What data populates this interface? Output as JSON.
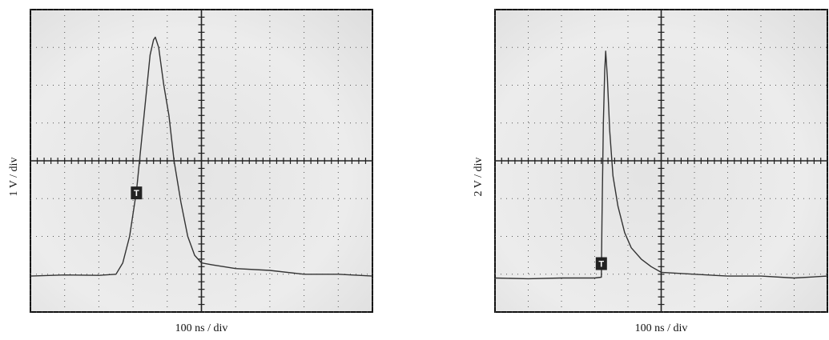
{
  "chart_data": [
    {
      "type": "line",
      "xlabel": "100 ns / div",
      "ylabel": "1 V / div",
      "xlim": [
        0,
        10
      ],
      "ylim": [
        0,
        8
      ],
      "xticks": [
        0,
        1,
        2,
        3,
        4,
        5,
        6,
        7,
        8,
        9,
        10
      ],
      "yticks": [
        0,
        1,
        2,
        3,
        4,
        5,
        6,
        7,
        8
      ],
      "grid": true,
      "x": [
        0,
        1,
        2,
        2.5,
        2.7,
        2.9,
        3.1,
        3.3,
        3.5,
        3.6,
        3.65,
        3.75,
        3.9,
        4.05,
        4.2,
        4.4,
        4.6,
        4.8,
        5.0,
        5.3,
        6,
        7,
        8,
        9,
        10
      ],
      "values": [
        0.95,
        0.98,
        0.97,
        1.0,
        1.3,
        2.0,
        3.2,
        5.0,
        6.8,
        7.2,
        7.27,
        7.0,
        6.0,
        5.2,
        4.0,
        2.9,
        2.0,
        1.5,
        1.3,
        1.25,
        1.15,
        1.1,
        1.0,
        1.0,
        0.95
      ],
      "color": "#333333",
      "trigger": {
        "label": "T",
        "x": 3.1,
        "y": 3.15
      }
    },
    {
      "type": "line",
      "xlabel": "100 ns / div",
      "ylabel": "2 V / div",
      "xlim": [
        0,
        10
      ],
      "ylim": [
        0,
        8
      ],
      "xticks": [
        0,
        1,
        2,
        3,
        4,
        5,
        6,
        7,
        8,
        9,
        10
      ],
      "yticks": [
        0,
        1,
        2,
        3,
        4,
        5,
        6,
        7,
        8
      ],
      "grid": true,
      "x": [
        0,
        1,
        2,
        3,
        3.2,
        3.22,
        3.26,
        3.3,
        3.33,
        3.38,
        3.45,
        3.55,
        3.7,
        3.9,
        4.1,
        4.4,
        4.7,
        5.0,
        6,
        7,
        8,
        9,
        10
      ],
      "values": [
        0.9,
        0.88,
        0.9,
        0.9,
        0.92,
        2.5,
        5.0,
        6.4,
        6.9,
        6.2,
        4.8,
        3.6,
        2.8,
        2.1,
        1.7,
        1.4,
        1.2,
        1.05,
        1.0,
        0.95,
        0.95,
        0.9,
        0.95
      ],
      "color": "#333333",
      "trigger": {
        "label": "T",
        "x": 3.2,
        "y": 1.28
      }
    }
  ]
}
